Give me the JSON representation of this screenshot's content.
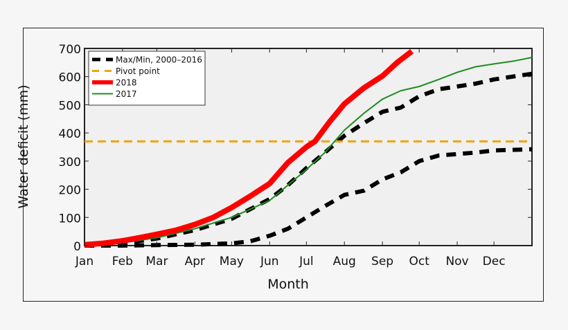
{
  "chart_data": {
    "type": "line",
    "title": "",
    "xlabel": "Month",
    "ylabel": "Water deficit (mm)",
    "xlim": [
      0,
      365
    ],
    "ylim": [
      0,
      700
    ],
    "yticks": [
      0,
      100,
      200,
      300,
      400,
      500,
      600,
      700
    ],
    "xtick_days": [
      0,
      31,
      59,
      90,
      120,
      151,
      181,
      212,
      243,
      273,
      304,
      334
    ],
    "xtick_labels": [
      "Jan",
      "Feb",
      "Mar",
      "Apr",
      "May",
      "Jun",
      "Jul",
      "Aug",
      "Sep",
      "Oct",
      "Nov",
      "Dec"
    ],
    "grid": false,
    "legend_placement": "top-left",
    "x_unit": "day of year",
    "series": [
      {
        "name": "Max/Min, 2000–2016",
        "role": "max",
        "color": "#000000",
        "style": "dashed",
        "x": [
          0,
          31,
          59,
          90,
          120,
          151,
          166,
          181,
          196,
          212,
          228,
          243,
          258,
          273,
          289,
          304,
          319,
          334,
          365
        ],
        "y": [
          0,
          8,
          25,
          55,
          95,
          165,
          215,
          275,
          330,
          390,
          435,
          475,
          490,
          530,
          555,
          565,
          575,
          590,
          610
        ]
      },
      {
        "name": "Max/Min, 2000–2016",
        "role": "min",
        "color": "#000000",
        "style": "dashed",
        "x": [
          0,
          31,
          59,
          90,
          120,
          135,
          151,
          166,
          181,
          196,
          212,
          228,
          243,
          258,
          273,
          289,
          304,
          319,
          334,
          365
        ],
        "y": [
          0,
          0,
          2,
          3,
          8,
          15,
          35,
          60,
          100,
          140,
          180,
          195,
          235,
          260,
          300,
          320,
          325,
          330,
          338,
          342
        ]
      },
      {
        "name": "Pivot point",
        "color": "#f0a30a",
        "style": "dashed",
        "x": [
          0,
          365
        ],
        "y": [
          370,
          370
        ]
      },
      {
        "name": "2018",
        "color": "#ff0000",
        "style": "thick",
        "x": [
          0,
          15,
          31,
          45,
          59,
          75,
          90,
          105,
          120,
          135,
          151,
          166,
          181,
          188,
          200,
          212,
          228,
          243,
          255,
          267
        ],
        "y": [
          3,
          8,
          17,
          28,
          40,
          55,
          75,
          100,
          135,
          175,
          220,
          295,
          350,
          370,
          440,
          503,
          560,
          602,
          650,
          690
        ]
      },
      {
        "name": "2017",
        "color": "#1e8c1e",
        "style": "solid",
        "x": [
          0,
          31,
          59,
          90,
          120,
          151,
          166,
          181,
          196,
          212,
          228,
          243,
          258,
          273,
          289,
          304,
          319,
          334,
          350,
          365
        ],
        "y": [
          0,
          10,
          28,
          60,
          100,
          160,
          215,
          270,
          330,
          410,
          470,
          520,
          550,
          565,
          590,
          615,
          635,
          645,
          655,
          668
        ]
      }
    ]
  }
}
